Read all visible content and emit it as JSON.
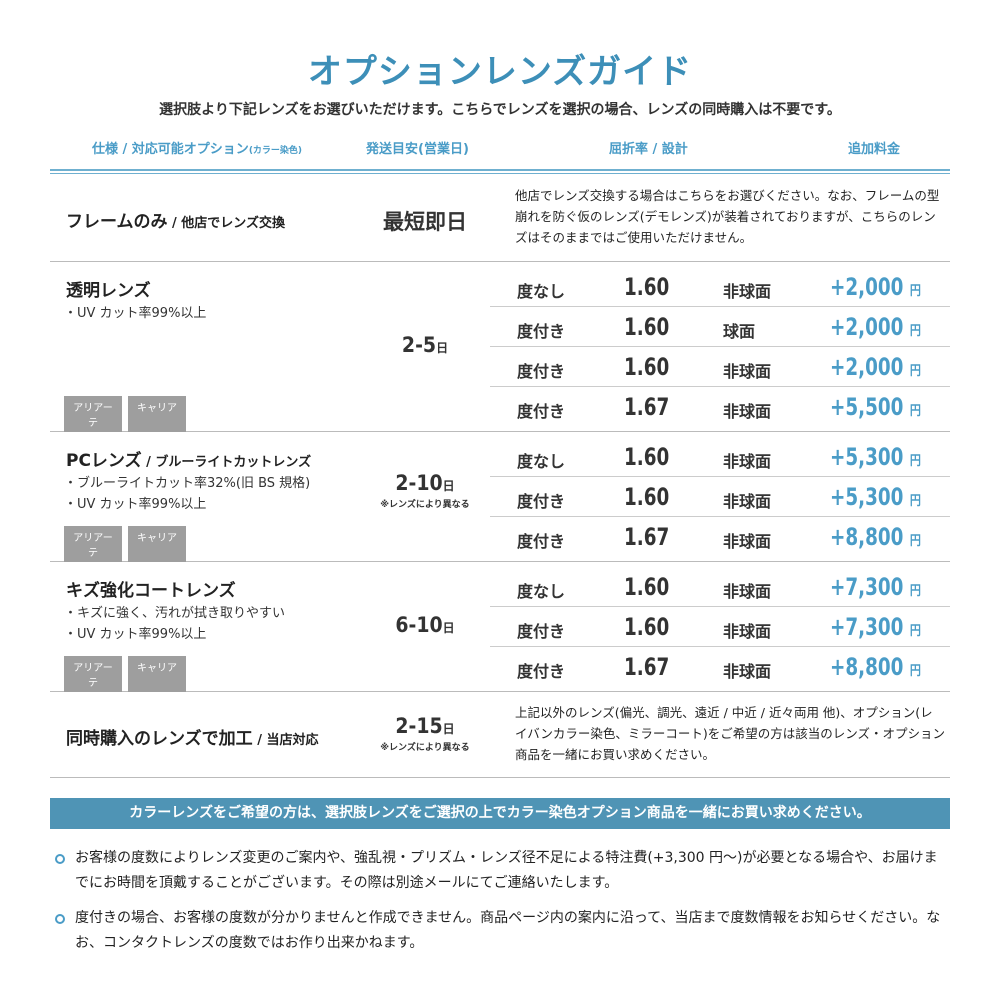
{
  "title": "オプションレンズガイド",
  "subtitle": "選択肢より下記レンズをお選びいただけます。こちらでレンズを選択の場合、レンズの同時購入は不要です。",
  "headers": {
    "spec": "仕様 / 対応可能オプション",
    "spec_small": "(カラー染色)",
    "days": "発送目安(営業日)",
    "index": "屈折率 / 設計",
    "price": "追加料金"
  },
  "frame": {
    "name": "フレームのみ",
    "name_sub": " / 他店でレンズ交換",
    "days": "最短即日",
    "desc": "他店でレンズ交換する場合はこちらをお選びください。なお、フレームの型崩れを防ぐ仮のレンズ(デモレンズ)が装着されておりますが、こちらのレンズはそのままではご使用いただけません。"
  },
  "sections": [
    {
      "name": "透明レンズ",
      "name_sub": "",
      "bullets": [
        "・UV カット率99%以上"
      ],
      "tags": [
        "アリアーテ",
        "キャリア"
      ],
      "days": "2-5",
      "unit": "日",
      "note": "",
      "rows": [
        {
          "type": "度なし",
          "index": "1.60",
          "design": "非球面",
          "price": "+2,000"
        },
        {
          "type": "度付き",
          "index": "1.60",
          "design": "球面",
          "price": "+2,000"
        },
        {
          "type": "度付き",
          "index": "1.60",
          "design": "非球面",
          "price": "+2,000"
        },
        {
          "type": "度付き",
          "index": "1.67",
          "design": "非球面",
          "price": "+5,500"
        }
      ]
    },
    {
      "name": "PCレンズ",
      "name_sub": " / ブルーライトカットレンズ",
      "bullets": [
        "・ブルーライトカット率32%(旧 BS 規格)",
        "・UV カット率99%以上"
      ],
      "tags": [
        "アリアーテ",
        "キャリア"
      ],
      "days": "2-10",
      "unit": "日",
      "note": "※レンズにより異なる",
      "rows": [
        {
          "type": "度なし",
          "index": "1.60",
          "design": "非球面",
          "price": "+5,300"
        },
        {
          "type": "度付き",
          "index": "1.60",
          "design": "非球面",
          "price": "+5,300"
        },
        {
          "type": "度付き",
          "index": "1.67",
          "design": "非球面",
          "price": "+8,800"
        }
      ]
    },
    {
      "name": "キズ強化コートレンズ",
      "name_sub": "",
      "bullets": [
        "・キズに強く、汚れが拭き取りやすい",
        "・UV カット率99%以上"
      ],
      "tags": [
        "アリアーテ",
        "キャリア"
      ],
      "days": "6-10",
      "unit": "日",
      "note": "",
      "rows": [
        {
          "type": "度なし",
          "index": "1.60",
          "design": "非球面",
          "price": "+7,300"
        },
        {
          "type": "度付き",
          "index": "1.60",
          "design": "非球面",
          "price": "+7,300"
        },
        {
          "type": "度付き",
          "index": "1.67",
          "design": "非球面",
          "price": "+8,800"
        }
      ]
    }
  ],
  "yen": "円",
  "same": {
    "name": "同時購入のレンズで加工",
    "name_sub": " / 当店対応",
    "days": "2-15",
    "unit": "日",
    "note": "※レンズにより異なる",
    "desc": "上記以外のレンズ(偏光、調光、遠近 / 中近 / 近々両用 他)、オプション(レイバンカラー染色、ミラーコート)をご希望の方は該当のレンズ・オプション商品を一緒にお買い求めください。"
  },
  "banner": "カラーレンズをご希望の方は、選択肢レンズをご選択の上でカラー染色オプション商品を一緒にお買い求めください。",
  "notes": [
    "お客様の度数によりレンズ変更のご案内や、強乱視・プリズム・レンズ径不足による特注費(+3,300 円〜)が必要となる場合や、お届けまでにお時間を頂戴することがございます。その際は別途メールにてご連絡いたします。",
    "度付きの場合、お客様の度数が分かりませんと作成できません。商品ページ内の案内に沿って、当店まで度数情報をお知らせください。なお、コンタクトレンズの度数ではお作り出来かねます。"
  ],
  "colors": {
    "accent": "#4a9cc7",
    "banner": "#4f94b5",
    "tag": "#9e9e9e"
  }
}
